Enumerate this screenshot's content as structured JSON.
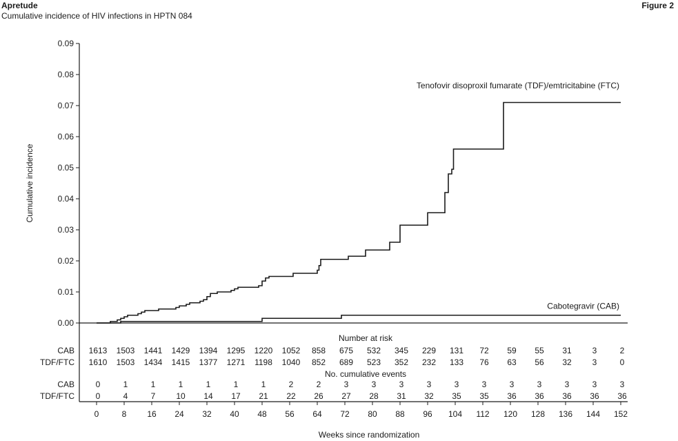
{
  "header": {
    "brand": "Apretude",
    "subtitle": "Cumulative incidence of HIV infections in HPTN 084",
    "figure_label": "Figure 2"
  },
  "chart_data": {
    "type": "line",
    "title": "",
    "xlabel": "Weeks since randomization",
    "ylabel": "Cumulative incidence",
    "xlim": [
      0,
      152
    ],
    "ylim": [
      0,
      0.09
    ],
    "x_ticks": [
      0,
      8,
      16,
      24,
      32,
      40,
      48,
      56,
      64,
      72,
      80,
      88,
      96,
      104,
      112,
      120,
      128,
      136,
      144,
      152
    ],
    "y_ticks": [
      0.0,
      0.01,
      0.02,
      0.03,
      0.04,
      0.05,
      0.06,
      0.07,
      0.08,
      0.09
    ],
    "y_tick_labels": [
      "0.00",
      "0.01",
      "0.02",
      "0.03",
      "0.04",
      "0.05",
      "0.06",
      "0.07",
      "0.08",
      "0.09"
    ],
    "grid": false,
    "series": [
      {
        "name": "Tenofovir disoproxil fumarate (TDF)/emtricitabine (FTC)",
        "step": true,
        "points": [
          [
            0,
            0
          ],
          [
            4,
            0.0005
          ],
          [
            6,
            0.001
          ],
          [
            7,
            0.0015
          ],
          [
            8,
            0.002
          ],
          [
            9,
            0.0025
          ],
          [
            12,
            0.003
          ],
          [
            13,
            0.0035
          ],
          [
            14,
            0.004
          ],
          [
            18,
            0.0045
          ],
          [
            23,
            0.005
          ],
          [
            24,
            0.0055
          ],
          [
            26,
            0.006
          ],
          [
            27,
            0.0065
          ],
          [
            30,
            0.007
          ],
          [
            31,
            0.0075
          ],
          [
            32,
            0.0085
          ],
          [
            33,
            0.0095
          ],
          [
            35,
            0.01
          ],
          [
            39,
            0.0105
          ],
          [
            40,
            0.011
          ],
          [
            41,
            0.0115
          ],
          [
            47,
            0.012
          ],
          [
            48,
            0.0135
          ],
          [
            49,
            0.0145
          ],
          [
            50,
            0.015
          ],
          [
            57,
            0.016
          ],
          [
            64,
            0.017
          ],
          [
            64.5,
            0.0185
          ],
          [
            65,
            0.0205
          ],
          [
            73,
            0.0215
          ],
          [
            78,
            0.0235
          ],
          [
            85,
            0.026
          ],
          [
            88,
            0.0315
          ],
          [
            96,
            0.0355
          ],
          [
            101,
            0.042
          ],
          [
            102,
            0.048
          ],
          [
            103,
            0.0495
          ],
          [
            103.5,
            0.056
          ],
          [
            118,
            0.071
          ],
          [
            152,
            0.071
          ]
        ]
      },
      {
        "name": "Cabotegravir (CAB)",
        "step": true,
        "points": [
          [
            0,
            0
          ],
          [
            7,
            0.0005
          ],
          [
            48,
            0.0015
          ],
          [
            71,
            0.0025
          ],
          [
            152,
            0.0025
          ]
        ]
      }
    ],
    "annotations": [
      {
        "text": "Tenofovir disoproxil fumarate (TDF)/emtricitabine (FTC)",
        "x": 152,
        "y": 0.0765
      },
      {
        "text": "Cabotegravir (CAB)",
        "x": 152,
        "y": 0.0055
      }
    ]
  },
  "risk_table": {
    "heading": "Number at risk",
    "rows": [
      {
        "label": "CAB",
        "values": [
          "1613",
          "1503",
          "1441",
          "1429",
          "1394",
          "1295",
          "1220",
          "1052",
          "858",
          "675",
          "532",
          "345",
          "229",
          "131",
          "72",
          "59",
          "55",
          "31",
          "3",
          "2"
        ]
      },
      {
        "label": "TDF/FTC",
        "values": [
          "1610",
          "1503",
          "1434",
          "1415",
          "1377",
          "1271",
          "1198",
          "1040",
          "852",
          "689",
          "523",
          "352",
          "232",
          "133",
          "76",
          "63",
          "56",
          "32",
          "3",
          "0"
        ]
      }
    ]
  },
  "events_table": {
    "heading": "No. cumulative events",
    "rows": [
      {
        "label": "CAB",
        "values": [
          "0",
          "1",
          "1",
          "1",
          "1",
          "1",
          "1",
          "2",
          "2",
          "3",
          "3",
          "3",
          "3",
          "3",
          "3",
          "3",
          "3",
          "3",
          "3",
          "3"
        ]
      },
      {
        "label": "TDF/FTC",
        "values": [
          "0",
          "4",
          "7",
          "10",
          "14",
          "17",
          "21",
          "22",
          "26",
          "27",
          "28",
          "31",
          "32",
          "35",
          "35",
          "36",
          "36",
          "36",
          "36",
          "36"
        ]
      }
    ]
  }
}
